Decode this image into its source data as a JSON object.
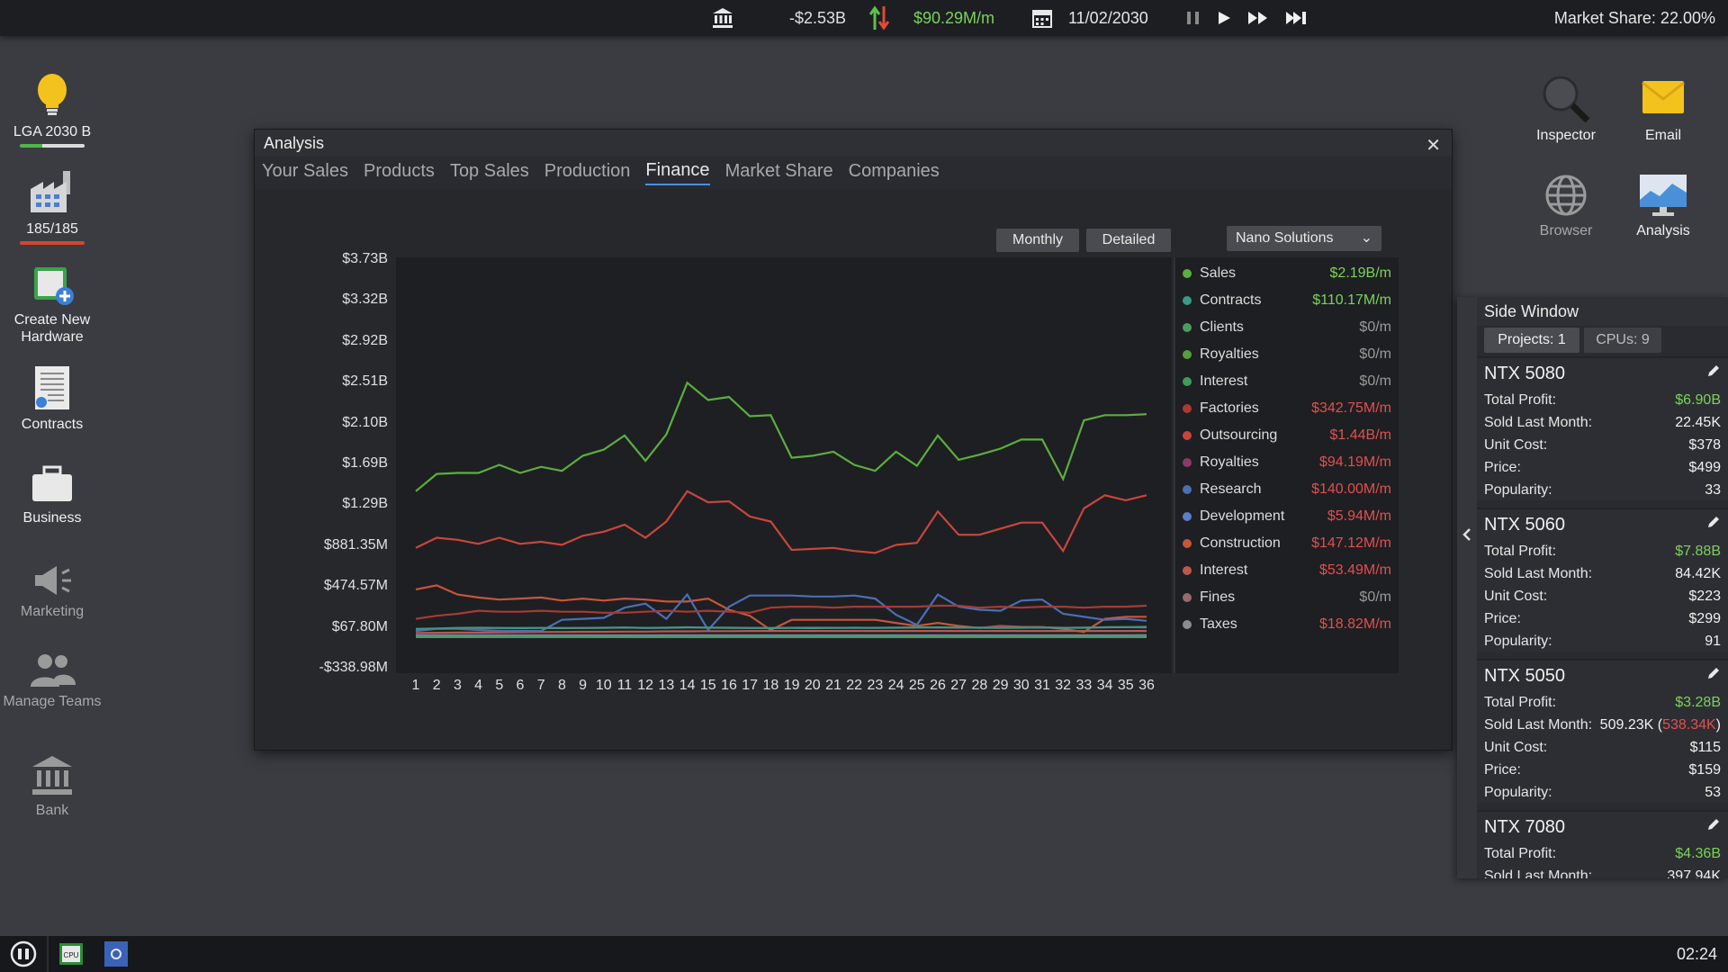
{
  "topbar": {
    "cash": "-$2.53B",
    "rate": "$90.29M/m",
    "date": "11/02/2030",
    "market_share": "Market Share: 22.00%"
  },
  "desktop": {
    "items": [
      {
        "label": "LGA 2030 B"
      },
      {
        "label": "185/185"
      },
      {
        "label": "Create New Hardware"
      },
      {
        "label": "Contracts"
      },
      {
        "label": "Business"
      },
      {
        "label": "Marketing"
      },
      {
        "label": "Manage Teams"
      },
      {
        "label": "Bank"
      }
    ],
    "right": [
      {
        "label": "Inspector"
      },
      {
        "label": "Email"
      },
      {
        "label": "Browser"
      },
      {
        "label": "Analysis"
      }
    ]
  },
  "window": {
    "title": "Analysis",
    "tabs": [
      "Your Sales",
      "Products",
      "Top Sales",
      "Production",
      "Finance",
      "Market Share",
      "Companies"
    ],
    "active_tab": "Finance",
    "buttons": {
      "monthly": "Monthly",
      "detailed": "Detailed"
    },
    "company_select": "Nano Solutions"
  },
  "chart_data": {
    "type": "line",
    "x": [
      1,
      2,
      3,
      4,
      5,
      6,
      7,
      8,
      9,
      10,
      11,
      12,
      13,
      14,
      15,
      16,
      17,
      18,
      19,
      20,
      21,
      22,
      23,
      24,
      25,
      26,
      27,
      28,
      29,
      30,
      31,
      32,
      33,
      34,
      35,
      36
    ],
    "y_ticks": [
      "$3.73B",
      "$3.32B",
      "$2.92B",
      "$2.51B",
      "$2.10B",
      "$1.69B",
      "$1.29B",
      "$881.35M",
      "$474.57M",
      "$67.80M",
      "-$338.98M"
    ],
    "ylim": [
      -338.98,
      3730
    ],
    "series": [
      {
        "name": "Sales",
        "color": "#5cae3f",
        "values": [
          1440,
          1610,
          1620,
          1620,
          1700,
          1620,
          1680,
          1640,
          1790,
          1850,
          1990,
          1740,
          2000,
          2510,
          2340,
          2370,
          2180,
          2190,
          1770,
          1790,
          1830,
          1700,
          1640,
          1830,
          1690,
          1990,
          1750,
          1800,
          1860,
          1950,
          1950,
          1560,
          2140,
          2190,
          2190,
          2200
        ]
      },
      {
        "name": "Contracts",
        "color": "#3a9b85",
        "values": [
          80,
          85,
          90,
          92,
          90,
          88,
          90,
          88,
          90,
          92,
          95,
          90,
          92,
          96,
          94,
          92,
          90,
          88,
          90,
          88,
          90,
          92,
          90,
          92,
          94,
          96,
          94,
          92,
          90,
          92,
          94,
          90,
          92,
          96,
          98,
          100
        ]
      },
      {
        "name": "Clients",
        "color": "#4a9c5b",
        "values": [
          0,
          0,
          0,
          0,
          0,
          0,
          0,
          0,
          0,
          0,
          0,
          0,
          0,
          0,
          0,
          0,
          0,
          0,
          0,
          0,
          0,
          0,
          0,
          0,
          0,
          0,
          0,
          0,
          0,
          0,
          0,
          0,
          0,
          0,
          0,
          0
        ]
      },
      {
        "name": "Royalties",
        "color": "#5a9c3f",
        "values": [
          0,
          0,
          0,
          0,
          0,
          0,
          0,
          0,
          0,
          0,
          0,
          0,
          0,
          0,
          0,
          0,
          0,
          0,
          0,
          0,
          0,
          0,
          0,
          0,
          0,
          0,
          0,
          0,
          0,
          0,
          0,
          0,
          0,
          0,
          0,
          0
        ]
      },
      {
        "name": "Interest",
        "color": "#3f9c5a",
        "values": [
          0,
          0,
          0,
          0,
          0,
          0,
          0,
          0,
          0,
          0,
          0,
          0,
          0,
          0,
          0,
          0,
          0,
          0,
          0,
          0,
          0,
          0,
          0,
          0,
          0,
          0,
          0,
          0,
          0,
          0,
          0,
          0,
          0,
          0,
          0,
          0
        ]
      },
      {
        "name": "Factories",
        "color": "#a83a32",
        "values": [
          180,
          210,
          230,
          260,
          250,
          250,
          260,
          250,
          250,
          240,
          240,
          250,
          260,
          250,
          260,
          250,
          240,
          290,
          300,
          300,
          290,
          300,
          300,
          300,
          300,
          310,
          310,
          290,
          300,
          290,
          300,
          300,
          290,
          300,
          300,
          310
        ]
      },
      {
        "name": "Outsourcing",
        "color": "#c9463c",
        "values": [
          880,
          980,
          960,
          920,
          980,
          920,
          940,
          910,
          1000,
          1040,
          1110,
          980,
          1140,
          1440,
          1330,
          1340,
          1190,
          1140,
          860,
          870,
          880,
          850,
          830,
          910,
          930,
          1240,
          1010,
          1010,
          1070,
          1130,
          1130,
          850,
          1270,
          1400,
          1350,
          1400
        ]
      },
      {
        "name": "Royalties",
        "color": "#8a3a66",
        "values": [
          80,
          82,
          85,
          88,
          86,
          88,
          90,
          88,
          88,
          90,
          92,
          90,
          92,
          94,
          92,
          90,
          88,
          90,
          92,
          94,
          92,
          90,
          92,
          94,
          96,
          94,
          92,
          94,
          96,
          94,
          96,
          92,
          94,
          96,
          98,
          94
        ]
      },
      {
        "name": "Research",
        "color": "#4a6fb5",
        "values": [
          60,
          80,
          80,
          70,
          60,
          60,
          60,
          170,
          180,
          190,
          290,
          330,
          180,
          420,
          70,
          300,
          410,
          410,
          410,
          400,
          400,
          410,
          380,
          220,
          120,
          420,
          300,
          270,
          260,
          360,
          370,
          230,
          200,
          170,
          180,
          160
        ]
      },
      {
        "name": "Development",
        "color": "#5a7ec9",
        "values": [
          10,
          12,
          10,
          12,
          10,
          12,
          10,
          12,
          10,
          12,
          10,
          12,
          10,
          12,
          10,
          12,
          10,
          12,
          10,
          12,
          10,
          12,
          10,
          12,
          10,
          12,
          10,
          12,
          10,
          12,
          10,
          12,
          10,
          12,
          10,
          12
        ]
      },
      {
        "name": "Construction",
        "color": "#c8553c",
        "values": [
          470,
          510,
          420,
          390,
          370,
          380,
          390,
          360,
          380,
          360,
          380,
          370,
          350,
          350,
          380,
          270,
          210,
          70,
          170,
          170,
          170,
          170,
          170,
          140,
          110,
          140,
          110,
          90,
          110,
          100,
          100,
          80,
          50,
          180,
          200,
          200
        ]
      },
      {
        "name": "Interest",
        "color": "#b9584f",
        "values": [
          40,
          42,
          44,
          44,
          46,
          48,
          50,
          50,
          52,
          52,
          54,
          54,
          56,
          56,
          58,
          58,
          60,
          60,
          60,
          60,
          60,
          60,
          60,
          60,
          60,
          60,
          60,
          60,
          60,
          60,
          60,
          60,
          60,
          60,
          60,
          60
        ]
      },
      {
        "name": "Fines",
        "color": "#9a6a6a",
        "values": [
          0,
          0,
          0,
          0,
          0,
          0,
          0,
          0,
          0,
          0,
          0,
          0,
          0,
          0,
          0,
          0,
          0,
          0,
          0,
          0,
          0,
          0,
          0,
          0,
          0,
          0,
          0,
          0,
          0,
          0,
          0,
          0,
          0,
          0,
          0,
          0
        ]
      },
      {
        "name": "Taxes",
        "color": "#8c8c8c",
        "values": [
          18,
          18,
          18,
          18,
          18,
          18,
          18,
          18,
          18,
          18,
          18,
          18,
          18,
          18,
          18,
          18,
          18,
          18,
          18,
          18,
          18,
          18,
          18,
          18,
          18,
          18,
          18,
          18,
          18,
          18,
          18,
          18,
          18,
          18,
          18,
          19
        ]
      }
    ],
    "legend_values": [
      "$2.19B/m",
      "$110.17M/m",
      "$0/m",
      "$0/m",
      "$0/m",
      "$342.75M/m",
      "$1.44B/m",
      "$94.19M/m",
      "$140.00M/m",
      "$5.94M/m",
      "$147.12M/m",
      "$53.49M/m",
      "$0/m",
      "$18.82M/m"
    ],
    "legend_value_colors": [
      "#7ad35a",
      "#7ad35a",
      "#9a9a9a",
      "#9a9a9a",
      "#9a9a9a",
      "#e05050",
      "#e05050",
      "#e05050",
      "#e05050",
      "#e05050",
      "#e05050",
      "#e05050",
      "#9a9a9a",
      "#e05050"
    ],
    "legend_placement": "right"
  },
  "side_window": {
    "title": "Side Window",
    "tabs": [
      "Projects: 1",
      "CPUs: 9"
    ],
    "products": [
      {
        "name": "NTX 5080",
        "rows": [
          [
            "Total Profit:",
            "$6.90B"
          ],
          [
            "Sold Last Month:",
            "22.45K"
          ],
          [
            "Unit Cost:",
            "$378"
          ],
          [
            "Price:",
            "$499"
          ],
          [
            "Popularity:",
            "33"
          ]
        ]
      },
      {
        "name": "NTX 5060",
        "rows": [
          [
            "Total Profit:",
            "$7.88B"
          ],
          [
            "Sold Last Month:",
            "84.42K"
          ],
          [
            "Unit Cost:",
            "$223"
          ],
          [
            "Price:",
            "$299"
          ],
          [
            "Popularity:",
            "91"
          ]
        ]
      },
      {
        "name": "NTX 5050",
        "rows": [
          [
            "Total Profit:",
            "$3.28B"
          ],
          [
            "Sold Last Month:",
            "509.23K (538.34K)"
          ],
          [
            "Unit Cost:",
            "$115"
          ],
          [
            "Price:",
            "$159"
          ],
          [
            "Popularity:",
            "53"
          ]
        ]
      },
      {
        "name": "NTX 7080",
        "rows": [
          [
            "Total Profit:",
            "$4.36B"
          ],
          [
            "Sold Last Month:",
            "397.94K"
          ]
        ]
      }
    ]
  },
  "taskbar": {
    "clock": "02:24"
  }
}
